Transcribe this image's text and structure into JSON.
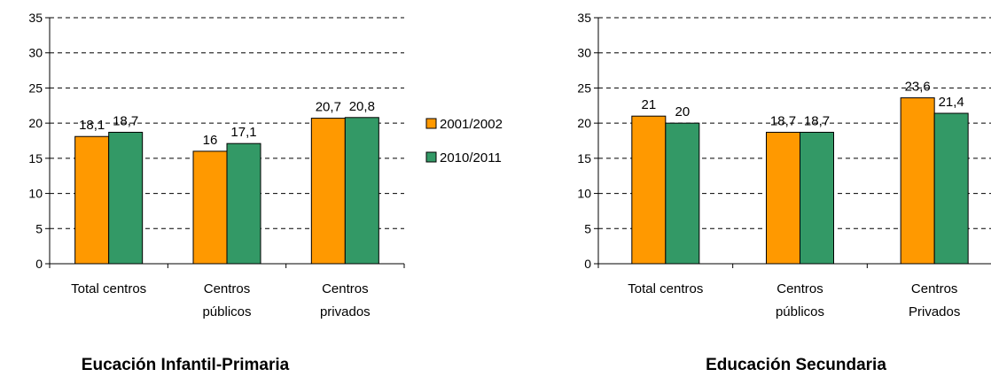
{
  "colors": {
    "series_2001": "#ff9900",
    "series_2010": "#339966"
  },
  "legend": [
    {
      "label": "2001/2002",
      "color": "#ff9900"
    },
    {
      "label": "2010/2011",
      "color": "#339966"
    }
  ],
  "chart_data": [
    {
      "type": "bar",
      "title": "Eucación Infantil-Primaria",
      "categories": [
        [
          "Total centros"
        ],
        [
          "Centros",
          "públicos"
        ],
        [
          "Centros",
          "privados"
        ]
      ],
      "series": [
        {
          "name": "2001/2002",
          "values": [
            18.1,
            16,
            20.7
          ],
          "labels": [
            "18,1",
            "16",
            "20,7"
          ]
        },
        {
          "name": "2010/2011",
          "values": [
            18.7,
            17.1,
            20.8
          ],
          "labels": [
            "18,7",
            "17,1",
            "20,8"
          ]
        }
      ],
      "ylim": [
        0,
        35
      ],
      "yticks": [
        0,
        5,
        10,
        15,
        20,
        25,
        30,
        35
      ],
      "grid": true,
      "legend_position": "right"
    },
    {
      "type": "bar",
      "title": "Educación Secundaria",
      "categories": [
        [
          "Total centros"
        ],
        [
          "Centros",
          "públicos"
        ],
        [
          "Centros",
          "Privados"
        ]
      ],
      "series": [
        {
          "name": "2001/2002",
          "values": [
            21,
            18.7,
            23.6
          ],
          "labels": [
            "21",
            "18,7",
            "23,6"
          ]
        },
        {
          "name": "2010/2011",
          "values": [
            20,
            18.7,
            21.4
          ],
          "labels": [
            "20",
            "18,7",
            "21,4"
          ]
        }
      ],
      "ylim": [
        0,
        35
      ],
      "yticks": [
        0,
        5,
        10,
        15,
        20,
        25,
        30,
        35
      ],
      "grid": true
    }
  ]
}
